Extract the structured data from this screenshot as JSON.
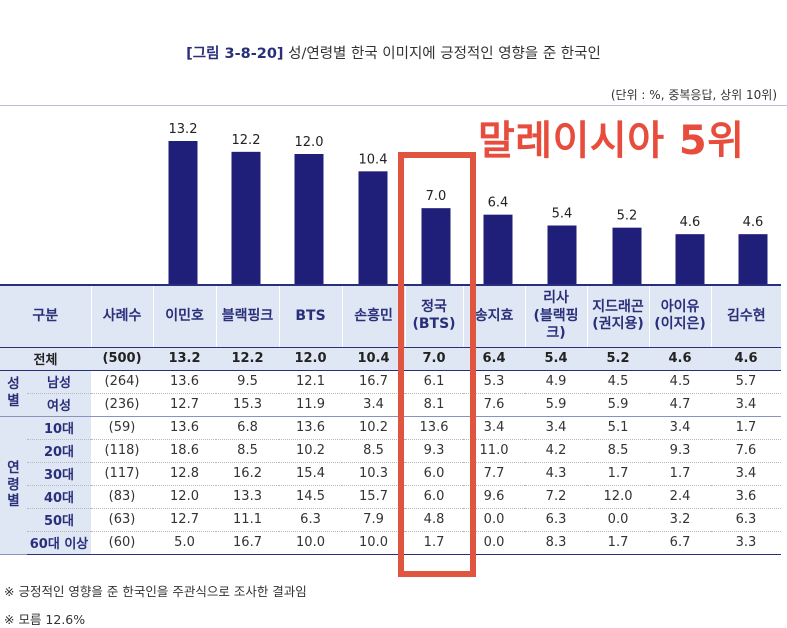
{
  "title": {
    "figure": "[그림 3-8-20]",
    "text": "성/연령별 한국 이미지에 긍정적인 영향을 준 한국인"
  },
  "unit": "(단위 : %, 중복응답, 상위 10위)",
  "overlay": "말레이시아 5위",
  "colors": {
    "bar": "#1f1f7a",
    "header_bg": "#dfe7f5",
    "accent_text": "#2a2f7a",
    "highlight": "#e05540",
    "overlay": "#e74c3c"
  },
  "chart_data": {
    "type": "bar",
    "title": "성/연령별 한국 이미지에 긍정적인 영향을 준 한국인",
    "categories": [
      "이민호",
      "블랙핑크",
      "BTS",
      "손흥민",
      "정국 (BTS)",
      "송지효",
      "리사 (블랙핑크)",
      "지드래곤 (권지용)",
      "아이유 (이지은)",
      "김수현"
    ],
    "values": [
      13.2,
      12.2,
      12.0,
      10.4,
      7.0,
      6.4,
      5.4,
      5.2,
      4.6,
      4.6
    ],
    "labels": [
      "13.2",
      "12.2",
      "12.0",
      "10.4",
      "7.0",
      "6.4",
      "5.4",
      "5.2",
      "4.6",
      "4.6"
    ],
    "ylim": [
      0,
      14.5
    ],
    "xlabel": "",
    "ylabel": ""
  },
  "table": {
    "headers": [
      {
        "col": "구분"
      },
      {
        "col": "사례수"
      },
      {
        "col": "이민호"
      },
      {
        "col": "블랙핑크"
      },
      {
        "col": "BTS"
      },
      {
        "col": "손흥민"
      },
      {
        "line1": "정국",
        "line2": "(BTS)"
      },
      {
        "col": "송지효"
      },
      {
        "line1": "리사",
        "line2": "(블랙핑크)"
      },
      {
        "line1": "지드래곤",
        "line2": "(권지용)"
      },
      {
        "line1": "아이유",
        "line2": "(이지은)"
      },
      {
        "col": "김수현"
      }
    ],
    "total": {
      "label": "전체",
      "n": "(500)",
      "values": [
        "13.2",
        "12.2",
        "12.0",
        "10.4",
        "7.0",
        "6.4",
        "5.4",
        "5.2",
        "4.6",
        "4.6"
      ]
    },
    "groups": [
      {
        "label": [
          "성",
          "별"
        ],
        "rows": [
          {
            "label": "남성",
            "n": "(264)",
            "values": [
              "13.6",
              "9.5",
              "12.1",
              "16.7",
              "6.1",
              "5.3",
              "4.9",
              "4.5",
              "4.5",
              "5.7"
            ]
          },
          {
            "label": "여성",
            "n": "(236)",
            "values": [
              "12.7",
              "15.3",
              "11.9",
              "3.4",
              "8.1",
              "7.6",
              "5.9",
              "5.9",
              "4.7",
              "3.4"
            ]
          }
        ]
      },
      {
        "label": [
          "연",
          "령",
          "별"
        ],
        "rows": [
          {
            "label": "10대",
            "n": "(59)",
            "values": [
              "13.6",
              "6.8",
              "13.6",
              "10.2",
              "13.6",
              "3.4",
              "3.4",
              "5.1",
              "3.4",
              "1.7"
            ]
          },
          {
            "label": "20대",
            "n": "(118)",
            "values": [
              "18.6",
              "8.5",
              "10.2",
              "8.5",
              "9.3",
              "11.0",
              "4.2",
              "8.5",
              "9.3",
              "7.6"
            ]
          },
          {
            "label": "30대",
            "n": "(117)",
            "values": [
              "12.8",
              "16.2",
              "15.4",
              "10.3",
              "6.0",
              "7.7",
              "4.3",
              "1.7",
              "1.7",
              "3.4"
            ]
          },
          {
            "label": "40대",
            "n": "(83)",
            "values": [
              "12.0",
              "13.3",
              "14.5",
              "15.7",
              "6.0",
              "9.6",
              "7.2",
              "12.0",
              "2.4",
              "3.6"
            ]
          },
          {
            "label": "50대",
            "n": "(63)",
            "values": [
              "12.7",
              "11.1",
              "6.3",
              "7.9",
              "4.8",
              "0.0",
              "6.3",
              "0.0",
              "3.2",
              "6.3"
            ]
          },
          {
            "label": "60대 이상",
            "n": "(60)",
            "values": [
              "5.0",
              "16.7",
              "10.0",
              "10.0",
              "1.7",
              "0.0",
              "8.3",
              "1.7",
              "6.7",
              "3.3"
            ]
          }
        ]
      }
    ]
  },
  "notes": [
    "※ 긍정적인 영향을 준 한국인을 주관식으로 조사한 결과임",
    "※ 모름 12.6%"
  ]
}
